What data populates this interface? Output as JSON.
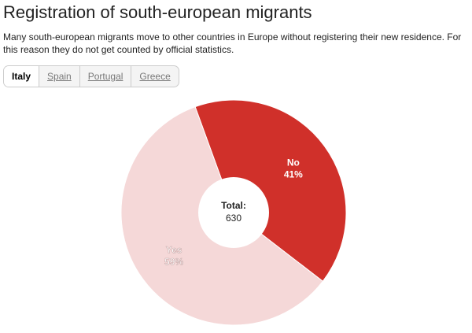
{
  "tabs": [
    "Italy",
    "Spain",
    "Portugal",
    "Greece"
  ],
  "selected_tab": 0,
  "chart_data": {
    "type": "pie",
    "title": "Registration of south-european migrants",
    "subtitle": "Many south-european migrants move to other countries in Europe without registering their new residence. For this reason they do not get counted by official statistics.",
    "categories": [
      "No",
      "Yes"
    ],
    "values": [
      41,
      59
    ],
    "value_labels": [
      "41%",
      "59%"
    ],
    "colors": [
      "#d0302a",
      "#f5d8d8"
    ],
    "center_label": "Total:",
    "total": 630
  }
}
